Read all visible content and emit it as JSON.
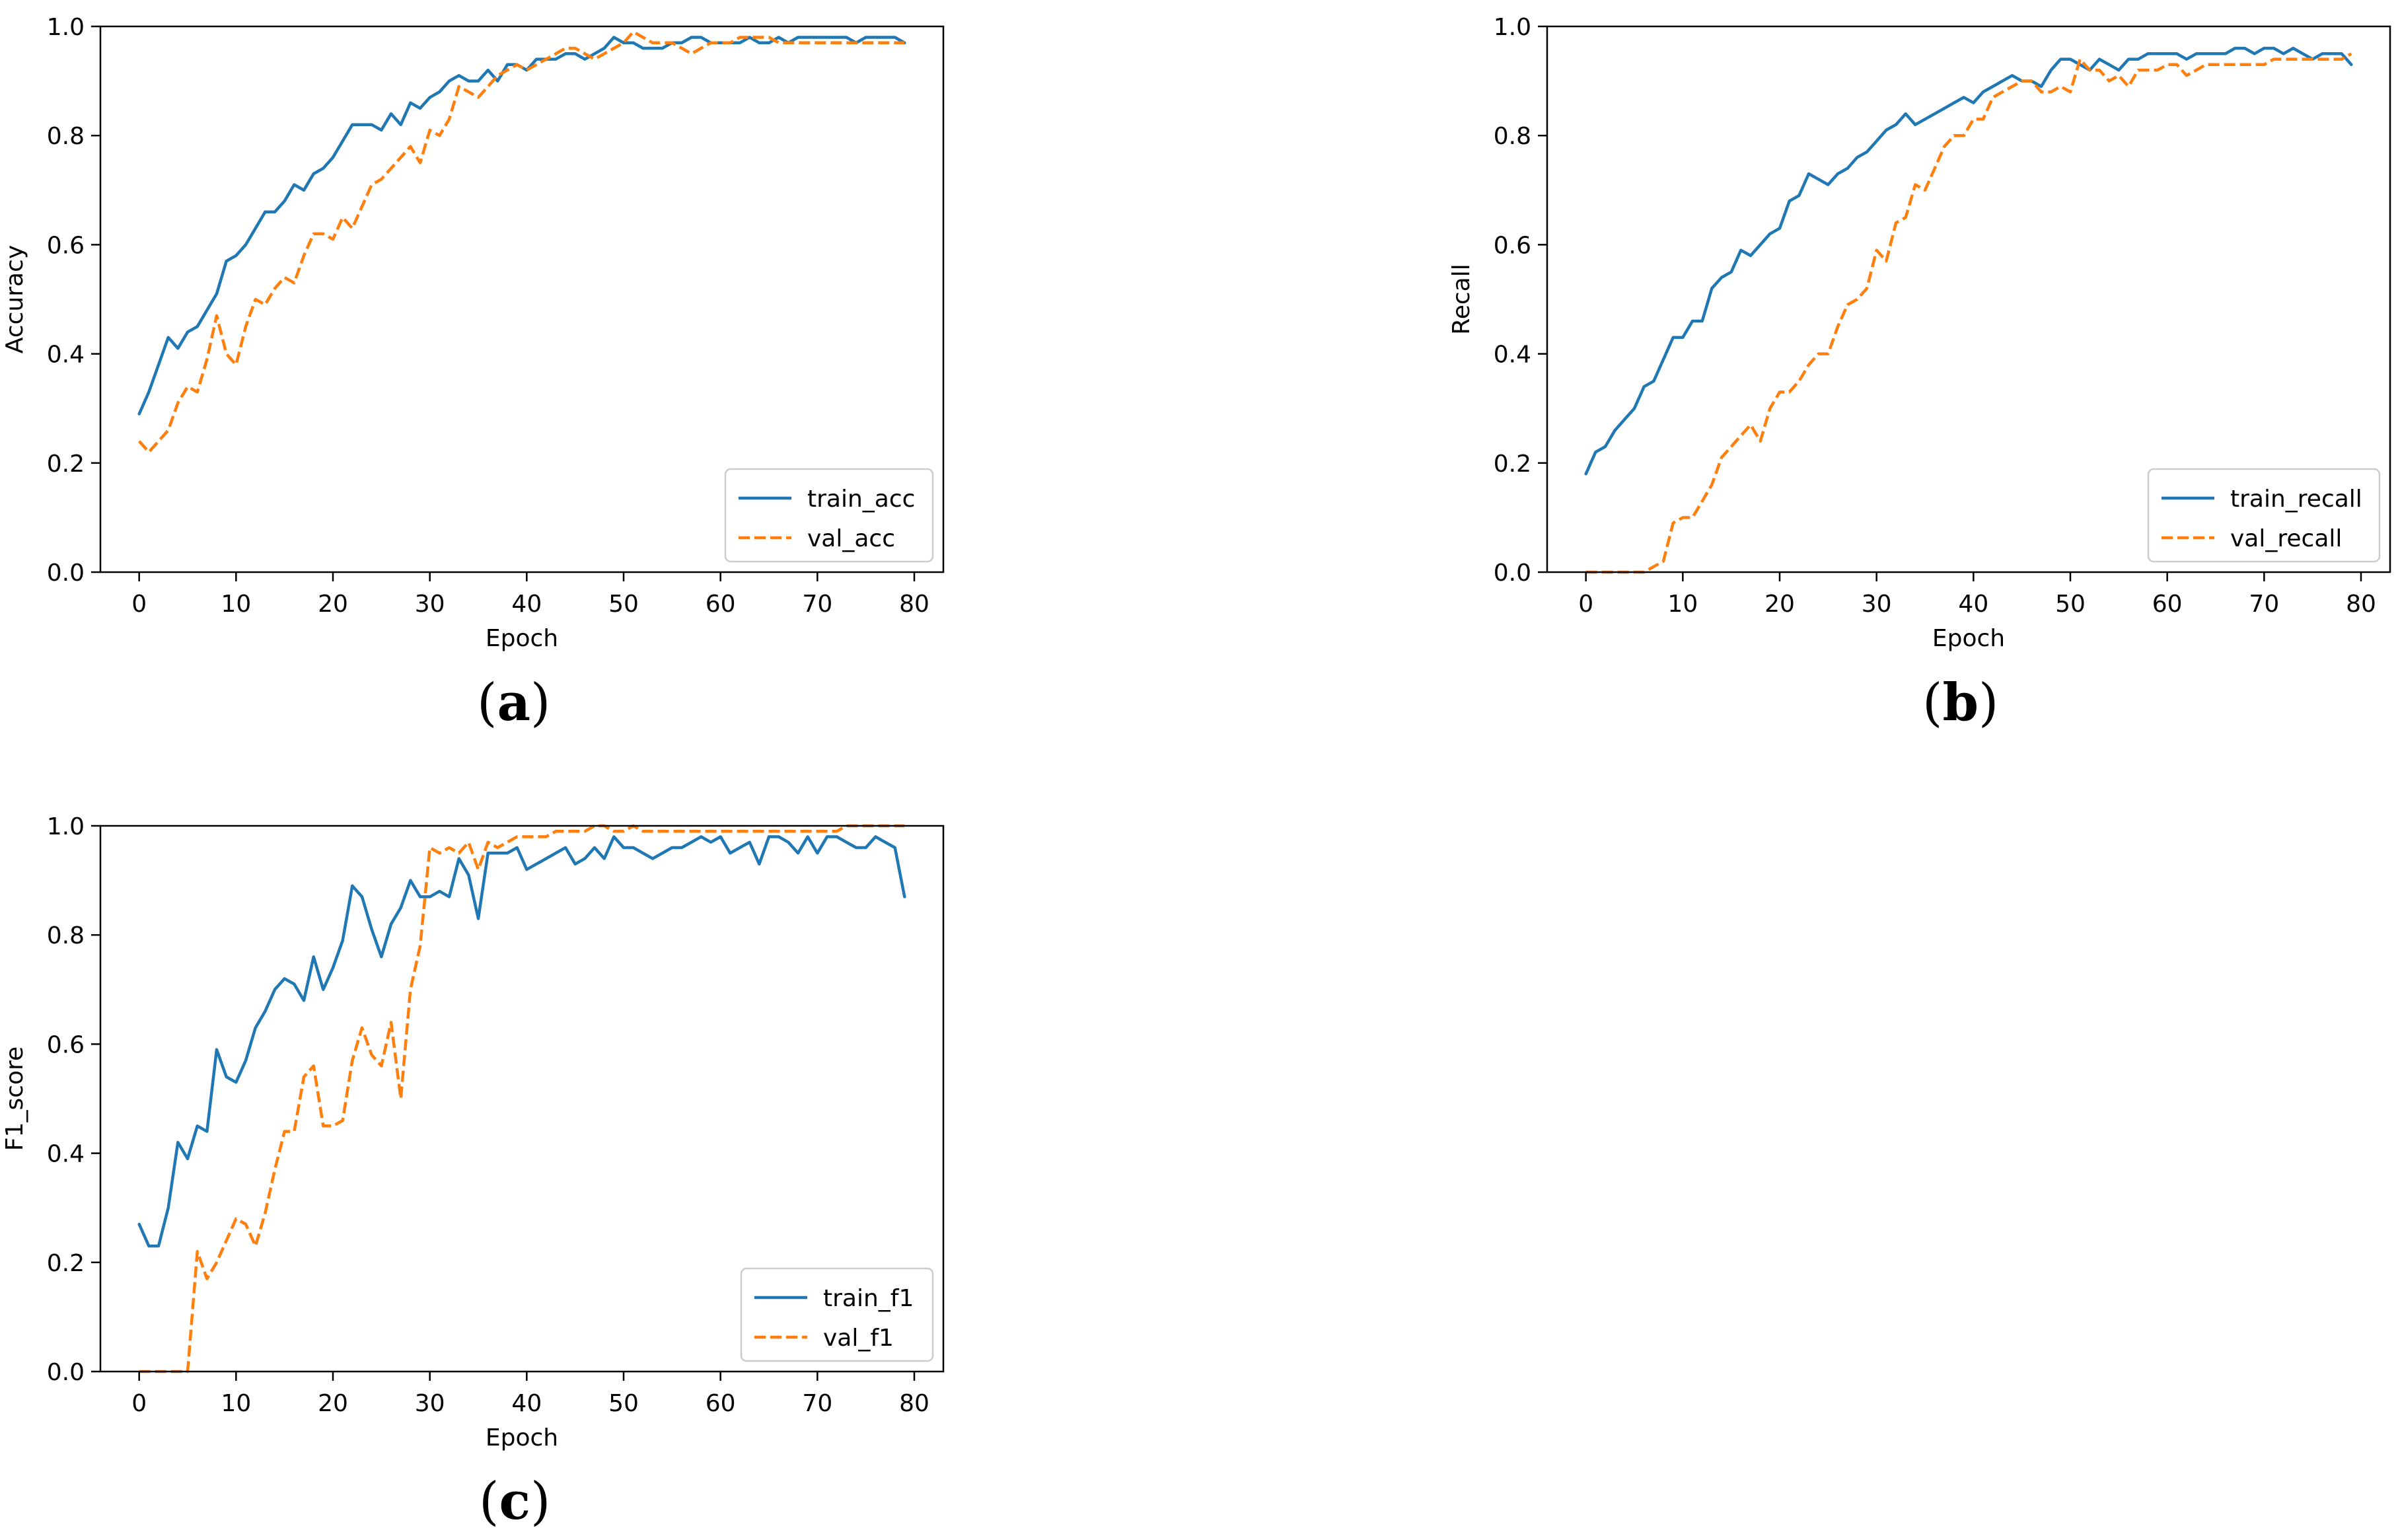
{
  "chart_data": [
    {
      "id": "a",
      "type": "line",
      "caption": "a",
      "xlabel": "Epoch",
      "ylabel": "Accuracy",
      "xlim": [
        -4,
        83
      ],
      "ylim": [
        0.0,
        1.0
      ],
      "xticks": [
        0,
        10,
        20,
        30,
        40,
        50,
        60,
        70,
        80
      ],
      "yticks": [
        0.0,
        0.2,
        0.4,
        0.6,
        0.8,
        1.0
      ],
      "xtick_labels": [
        "0",
        "10",
        "20",
        "30",
        "40",
        "50",
        "60",
        "70",
        "80"
      ],
      "ytick_labels": [
        "0.0",
        "0.2",
        "0.4",
        "0.6",
        "0.8",
        "1.0"
      ],
      "grid": false,
      "legend_position": "bottom-right",
      "series": [
        {
          "name": "train_acc",
          "color": "#1f77b4",
          "style": "solid",
          "values": [
            0.29,
            0.33,
            0.38,
            0.43,
            0.41,
            0.44,
            0.45,
            0.48,
            0.51,
            0.57,
            0.58,
            0.6,
            0.63,
            0.66,
            0.66,
            0.68,
            0.71,
            0.7,
            0.73,
            0.74,
            0.76,
            0.79,
            0.82,
            0.82,
            0.82,
            0.81,
            0.84,
            0.82,
            0.86,
            0.85,
            0.87,
            0.88,
            0.9,
            0.91,
            0.9,
            0.9,
            0.92,
            0.9,
            0.93,
            0.93,
            0.92,
            0.94,
            0.94,
            0.94,
            0.95,
            0.95,
            0.94,
            0.95,
            0.96,
            0.98,
            0.97,
            0.97,
            0.96,
            0.96,
            0.96,
            0.97,
            0.97,
            0.98,
            0.98,
            0.97,
            0.97,
            0.97,
            0.97,
            0.98,
            0.97,
            0.97,
            0.98,
            0.97,
            0.98,
            0.98,
            0.98,
            0.98,
            0.98,
            0.98,
            0.97,
            0.98,
            0.98,
            0.98,
            0.98,
            0.97
          ]
        },
        {
          "name": "val_acc",
          "color": "#ff7f0e",
          "style": "dashed",
          "values": [
            0.24,
            0.22,
            0.24,
            0.26,
            0.31,
            0.34,
            0.33,
            0.39,
            0.47,
            0.4,
            0.38,
            0.45,
            0.5,
            0.49,
            0.52,
            0.54,
            0.53,
            0.58,
            0.62,
            0.62,
            0.61,
            0.65,
            0.63,
            0.67,
            0.71,
            0.72,
            0.74,
            0.76,
            0.78,
            0.75,
            0.81,
            0.8,
            0.83,
            0.89,
            0.88,
            0.87,
            0.89,
            0.91,
            0.92,
            0.93,
            0.92,
            0.93,
            0.94,
            0.95,
            0.96,
            0.96,
            0.95,
            0.94,
            0.95,
            0.96,
            0.97,
            0.99,
            0.98,
            0.97,
            0.97,
            0.97,
            0.96,
            0.95,
            0.96,
            0.97,
            0.97,
            0.97,
            0.98,
            0.98,
            0.98,
            0.98,
            0.97,
            0.97,
            0.97,
            0.97,
            0.97,
            0.97,
            0.97,
            0.97,
            0.97,
            0.97,
            0.97,
            0.97,
            0.97,
            0.97
          ]
        }
      ]
    },
    {
      "id": "b",
      "type": "line",
      "caption": "b",
      "xlabel": "Epoch",
      "ylabel": "Recall",
      "xlim": [
        -4,
        83
      ],
      "ylim": [
        0.0,
        1.0
      ],
      "xticks": [
        0,
        10,
        20,
        30,
        40,
        50,
        60,
        70,
        80
      ],
      "yticks": [
        0.0,
        0.2,
        0.4,
        0.6,
        0.8,
        1.0
      ],
      "xtick_labels": [
        "0",
        "10",
        "20",
        "30",
        "40",
        "50",
        "60",
        "70",
        "80"
      ],
      "ytick_labels": [
        "0.0",
        "0.2",
        "0.4",
        "0.6",
        "0.8",
        "1.0"
      ],
      "grid": false,
      "legend_position": "bottom-right",
      "series": [
        {
          "name": "train_recall",
          "color": "#1f77b4",
          "style": "solid",
          "values": [
            0.18,
            0.22,
            0.23,
            0.26,
            0.28,
            0.3,
            0.34,
            0.35,
            0.39,
            0.43,
            0.43,
            0.46,
            0.46,
            0.52,
            0.54,
            0.55,
            0.59,
            0.58,
            0.6,
            0.62,
            0.63,
            0.68,
            0.69,
            0.73,
            0.72,
            0.71,
            0.73,
            0.74,
            0.76,
            0.77,
            0.79,
            0.81,
            0.82,
            0.84,
            0.82,
            0.83,
            0.84,
            0.85,
            0.86,
            0.87,
            0.86,
            0.88,
            0.89,
            0.9,
            0.91,
            0.9,
            0.9,
            0.89,
            0.92,
            0.94,
            0.94,
            0.93,
            0.92,
            0.94,
            0.93,
            0.92,
            0.94,
            0.94,
            0.95,
            0.95,
            0.95,
            0.95,
            0.94,
            0.95,
            0.95,
            0.95,
            0.95,
            0.96,
            0.96,
            0.95,
            0.96,
            0.96,
            0.95,
            0.96,
            0.95,
            0.94,
            0.95,
            0.95,
            0.95,
            0.93
          ]
        },
        {
          "name": "val_recall",
          "color": "#ff7f0e",
          "style": "dashed",
          "values": [
            0.0,
            0.0,
            0.0,
            0.0,
            0.0,
            0.0,
            0.0,
            0.01,
            0.02,
            0.09,
            0.1,
            0.1,
            0.13,
            0.16,
            0.21,
            0.23,
            0.25,
            0.27,
            0.24,
            0.3,
            0.33,
            0.33,
            0.35,
            0.38,
            0.4,
            0.4,
            0.45,
            0.49,
            0.5,
            0.52,
            0.59,
            0.57,
            0.64,
            0.65,
            0.71,
            0.7,
            0.74,
            0.78,
            0.8,
            0.8,
            0.83,
            0.83,
            0.87,
            0.88,
            0.89,
            0.9,
            0.9,
            0.88,
            0.88,
            0.89,
            0.88,
            0.94,
            0.92,
            0.92,
            0.9,
            0.91,
            0.89,
            0.92,
            0.92,
            0.92,
            0.93,
            0.93,
            0.91,
            0.92,
            0.93,
            0.93,
            0.93,
            0.93,
            0.93,
            0.93,
            0.93,
            0.94,
            0.94,
            0.94,
            0.94,
            0.94,
            0.94,
            0.94,
            0.94,
            0.95
          ]
        }
      ]
    },
    {
      "id": "c",
      "type": "line",
      "caption": "c",
      "xlabel": "Epoch",
      "ylabel": "F1_score",
      "xlim": [
        -4,
        83
      ],
      "ylim": [
        0.0,
        1.0
      ],
      "xticks": [
        0,
        10,
        20,
        30,
        40,
        50,
        60,
        70,
        80
      ],
      "yticks": [
        0.0,
        0.2,
        0.4,
        0.6,
        0.8,
        1.0
      ],
      "xtick_labels": [
        "0",
        "10",
        "20",
        "30",
        "40",
        "50",
        "60",
        "70",
        "80"
      ],
      "ytick_labels": [
        "0.0",
        "0.2",
        "0.4",
        "0.6",
        "0.8",
        "1.0"
      ],
      "grid": false,
      "legend_position": "bottom-right",
      "series": [
        {
          "name": "train_f1",
          "color": "#1f77b4",
          "style": "solid",
          "values": [
            0.27,
            0.23,
            0.23,
            0.3,
            0.42,
            0.39,
            0.45,
            0.44,
            0.59,
            0.54,
            0.53,
            0.57,
            0.63,
            0.66,
            0.7,
            0.72,
            0.71,
            0.68,
            0.76,
            0.7,
            0.74,
            0.79,
            0.89,
            0.87,
            0.81,
            0.76,
            0.82,
            0.85,
            0.9,
            0.87,
            0.87,
            0.88,
            0.87,
            0.94,
            0.91,
            0.83,
            0.95,
            0.95,
            0.95,
            0.96,
            0.92,
            0.93,
            0.94,
            0.95,
            0.96,
            0.93,
            0.94,
            0.96,
            0.94,
            0.98,
            0.96,
            0.96,
            0.95,
            0.94,
            0.95,
            0.96,
            0.96,
            0.97,
            0.98,
            0.97,
            0.98,
            0.95,
            0.96,
            0.97,
            0.93,
            0.98,
            0.98,
            0.97,
            0.95,
            0.98,
            0.95,
            0.98,
            0.98,
            0.97,
            0.96,
            0.96,
            0.98,
            0.97,
            0.96,
            0.87
          ]
        },
        {
          "name": "val_f1",
          "color": "#ff7f0e",
          "style": "dashed",
          "values": [
            0.0,
            0.0,
            0.0,
            0.0,
            0.0,
            0.0,
            0.22,
            0.17,
            0.2,
            0.24,
            0.28,
            0.27,
            0.23,
            0.29,
            0.37,
            0.44,
            0.44,
            0.54,
            0.56,
            0.45,
            0.45,
            0.46,
            0.57,
            0.63,
            0.58,
            0.56,
            0.64,
            0.5,
            0.7,
            0.78,
            0.96,
            0.95,
            0.96,
            0.95,
            0.97,
            0.92,
            0.97,
            0.96,
            0.97,
            0.98,
            0.98,
            0.98,
            0.98,
            0.99,
            0.99,
            0.99,
            0.99,
            1.0,
            1.0,
            0.99,
            0.99,
            1.0,
            0.99,
            0.99,
            0.99,
            0.99,
            0.99,
            0.99,
            0.99,
            0.99,
            0.99,
            0.99,
            0.99,
            0.99,
            0.99,
            0.99,
            0.99,
            0.99,
            0.99,
            0.99,
            0.99,
            0.99,
            0.99,
            1.0,
            1.0,
            1.0,
            1.0,
            1.0,
            1.0,
            1.0
          ]
        }
      ]
    }
  ]
}
